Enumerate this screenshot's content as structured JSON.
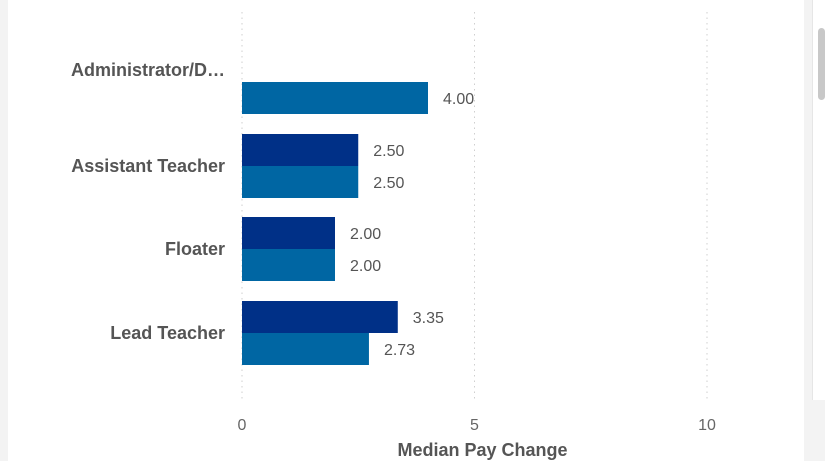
{
  "chart_data": {
    "type": "bar",
    "orientation": "horizontal",
    "categories": [
      "Administrator/D…",
      "Assistant Teacher",
      "Floater",
      "Lead Teacher"
    ],
    "series": [
      {
        "color": "#003087",
        "values": [
          null,
          2.5,
          2.0,
          3.35
        ]
      },
      {
        "color": "#0066a3",
        "values": [
          4.0,
          2.5,
          2.0,
          2.73
        ]
      }
    ],
    "value_labels": [
      [
        null,
        "2.50",
        "2.00",
        "3.35"
      ],
      [
        "4.00",
        "2.50",
        "2.00",
        "2.73"
      ]
    ],
    "xlim": [
      0,
      10
    ],
    "xticks": [
      0,
      5,
      10
    ],
    "xtick_labels": [
      "0",
      "5",
      "10"
    ],
    "xlabel": "Median Pay Change",
    "ylabel": "",
    "grid": "vertical-dotted",
    "legend": "none"
  }
}
